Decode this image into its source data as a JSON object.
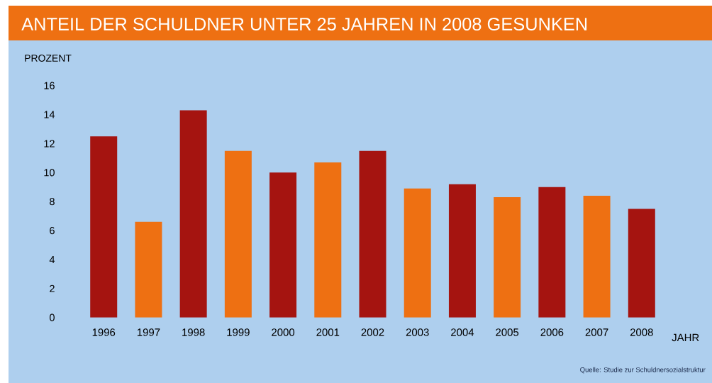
{
  "chart_data": {
    "type": "bar",
    "title": "ANTEIL DER SCHULDNER UNTER 25 JAHREN IN 2008 GESUNKEN",
    "ylabel": "PROZENT",
    "xlabel": "JAHR",
    "categories": [
      "1996",
      "1997",
      "1998",
      "1999",
      "2000",
      "2001",
      "2002",
      "2003",
      "2004",
      "2005",
      "2006",
      "2007",
      "2008"
    ],
    "values": [
      12.5,
      6.6,
      14.3,
      11.5,
      10.0,
      10.7,
      11.5,
      8.9,
      9.2,
      8.3,
      9.0,
      8.4,
      7.5
    ],
    "colors": [
      "#a51410",
      "#ee7012",
      "#a51410",
      "#ee7012",
      "#a51410",
      "#ee7012",
      "#a51410",
      "#ee7012",
      "#a51410",
      "#ee7012",
      "#a51410",
      "#ee7012",
      "#a51410"
    ],
    "ylim": [
      0,
      16
    ],
    "yticks": [
      0,
      2,
      4,
      6,
      8,
      10,
      12,
      14,
      16
    ],
    "annotations": [
      "Quelle: Studie zur Schuldnersozialstruktur"
    ]
  }
}
